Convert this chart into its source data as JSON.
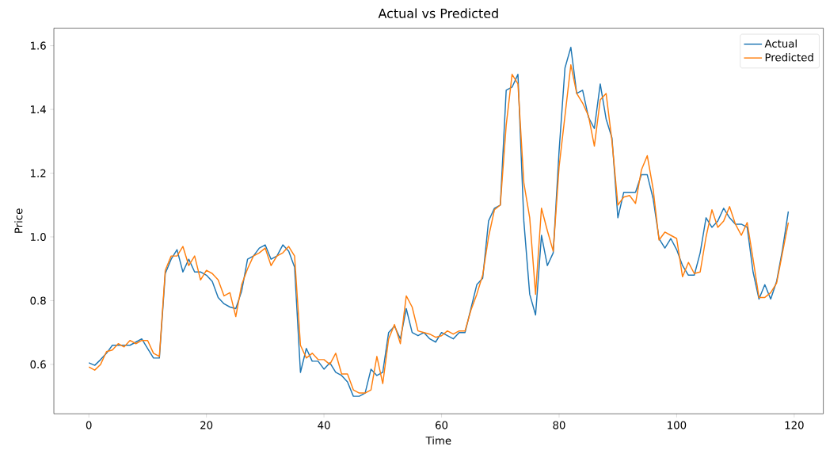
{
  "chart_data": {
    "type": "line",
    "title": "Actual vs Predicted",
    "xlabel": "Time",
    "ylabel": "Price",
    "x": [
      0,
      1,
      2,
      3,
      4,
      5,
      6,
      7,
      8,
      9,
      10,
      11,
      12,
      13,
      14,
      15,
      16,
      17,
      18,
      19,
      20,
      21,
      22,
      23,
      24,
      25,
      26,
      27,
      28,
      29,
      30,
      31,
      32,
      33,
      34,
      35,
      36,
      37,
      38,
      39,
      40,
      41,
      42,
      43,
      44,
      45,
      46,
      47,
      48,
      49,
      50,
      51,
      52,
      53,
      54,
      55,
      56,
      57,
      58,
      59,
      60,
      61,
      62,
      63,
      64,
      65,
      66,
      67,
      68,
      69,
      70,
      71,
      72,
      73,
      74,
      75,
      76,
      77,
      78,
      79,
      80,
      81,
      82,
      83,
      84,
      85,
      86,
      87,
      88,
      89,
      90,
      91,
      92,
      93,
      94,
      95,
      96,
      97,
      98,
      99,
      100,
      101,
      102,
      103,
      104,
      105,
      106,
      107,
      108,
      109,
      110,
      111,
      112,
      113,
      114,
      115,
      116,
      117,
      118,
      119
    ],
    "series": [
      {
        "name": "Actual",
        "color": "#1f77b4",
        "values": [
          0.605,
          0.597,
          0.615,
          0.635,
          0.66,
          0.66,
          0.66,
          0.66,
          0.67,
          0.68,
          0.65,
          0.62,
          0.62,
          0.885,
          0.93,
          0.96,
          0.89,
          0.93,
          0.89,
          0.89,
          0.88,
          0.86,
          0.81,
          0.79,
          0.78,
          0.775,
          0.83,
          0.93,
          0.94,
          0.965,
          0.975,
          0.93,
          0.94,
          0.975,
          0.955,
          0.905,
          0.575,
          0.65,
          0.61,
          0.61,
          0.585,
          0.605,
          0.575,
          0.565,
          0.545,
          0.5,
          0.5,
          0.51,
          0.585,
          0.565,
          0.575,
          0.7,
          0.72,
          0.68,
          0.775,
          0.7,
          0.69,
          0.7,
          0.68,
          0.67,
          0.7,
          0.69,
          0.68,
          0.7,
          0.7,
          0.775,
          0.85,
          0.87,
          1.05,
          1.09,
          1.1,
          1.46,
          1.47,
          1.51,
          1.05,
          0.82,
          0.755,
          1.005,
          0.91,
          0.95,
          1.27,
          1.53,
          1.595,
          1.45,
          1.46,
          1.375,
          1.34,
          1.48,
          1.37,
          1.31,
          1.06,
          1.14,
          1.14,
          1.14,
          1.195,
          1.195,
          1.12,
          0.995,
          0.965,
          0.995,
          0.96,
          0.91,
          0.88,
          0.88,
          0.95,
          1.06,
          1.03,
          1.05,
          1.09,
          1.06,
          1.04,
          1.04,
          1.03,
          0.89,
          0.805,
          0.85,
          0.805,
          0.86,
          0.96,
          1.08
        ]
      },
      {
        "name": "Predicted",
        "color": "#ff7f0e",
        "values": [
          0.592,
          0.582,
          0.6,
          0.64,
          0.645,
          0.665,
          0.655,
          0.675,
          0.665,
          0.675,
          0.675,
          0.635,
          0.625,
          0.895,
          0.94,
          0.94,
          0.97,
          0.91,
          0.94,
          0.865,
          0.895,
          0.885,
          0.865,
          0.815,
          0.825,
          0.75,
          0.85,
          0.9,
          0.94,
          0.95,
          0.965,
          0.91,
          0.94,
          0.95,
          0.97,
          0.94,
          0.66,
          0.62,
          0.635,
          0.615,
          0.615,
          0.6,
          0.635,
          0.57,
          0.57,
          0.52,
          0.51,
          0.51,
          0.52,
          0.625,
          0.54,
          0.68,
          0.725,
          0.665,
          0.815,
          0.78,
          0.705,
          0.7,
          0.695,
          0.685,
          0.69,
          0.705,
          0.695,
          0.705,
          0.705,
          0.77,
          0.82,
          0.88,
          1.0,
          1.085,
          1.1,
          1.35,
          1.51,
          1.48,
          1.17,
          1.06,
          0.82,
          1.09,
          1.02,
          0.955,
          1.22,
          1.38,
          1.54,
          1.45,
          1.42,
          1.38,
          1.285,
          1.43,
          1.45,
          1.3,
          1.1,
          1.125,
          1.13,
          1.105,
          1.21,
          1.255,
          1.15,
          0.99,
          1.015,
          1.005,
          0.995,
          0.875,
          0.92,
          0.885,
          0.89,
          1.0,
          1.085,
          1.03,
          1.05,
          1.095,
          1.04,
          1.005,
          1.045,
          0.93,
          0.81,
          0.81,
          0.825,
          0.855,
          0.95,
          1.045
        ]
      }
    ],
    "xlim": [
      -5.95,
      124.95
    ],
    "ylim": [
      0.445,
      1.655
    ],
    "xticks": [
      0,
      20,
      40,
      60,
      80,
      100,
      120
    ],
    "yticks": [
      {
        "value": 0.6,
        "label": "0.6"
      },
      {
        "value": 0.8,
        "label": "0.8"
      },
      {
        "value": 1.0,
        "label": "1.0"
      },
      {
        "value": 1.2,
        "label": "1.2"
      },
      {
        "value": 1.4,
        "label": "1.4"
      },
      {
        "value": 1.6,
        "label": "1.6"
      }
    ],
    "legend": "top right",
    "grid": false,
    "marker": "none",
    "line_style": "solid"
  }
}
